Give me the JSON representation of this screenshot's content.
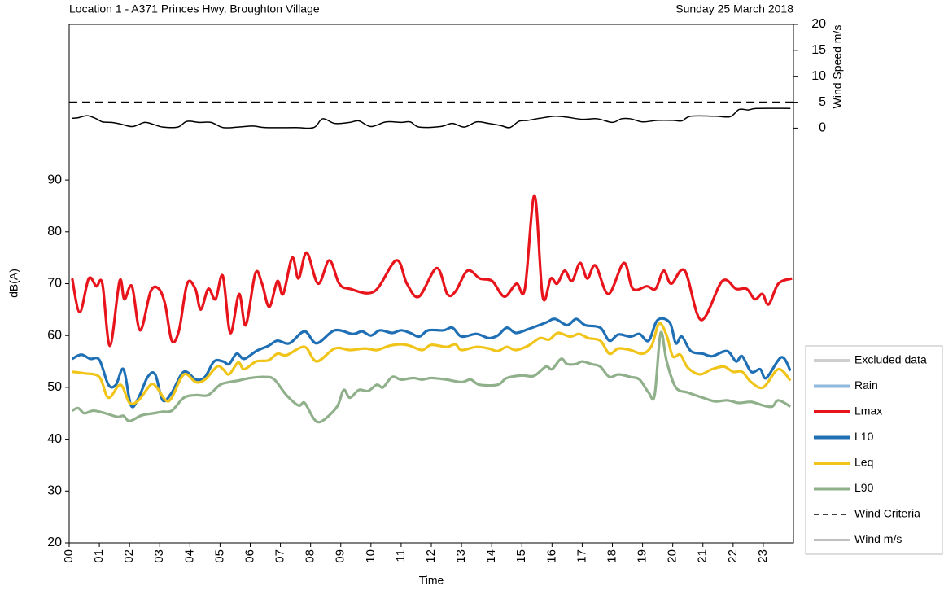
{
  "chart_data": {
    "type": "line",
    "title": "Location 1 - A371 Princes Hwy, Broughton Village",
    "subtitle": "Sunday 25 March 2018",
    "x_label": "Time",
    "y_label": "dB(A)",
    "y2_label": "Wind Speed m/s",
    "xlim": [
      0,
      24
    ],
    "xticks": [
      {
        "value": 0,
        "label": "00"
      },
      {
        "value": 1,
        "label": "01"
      },
      {
        "value": 2,
        "label": "02"
      },
      {
        "value": 3,
        "label": "03"
      },
      {
        "value": 4,
        "label": "04"
      },
      {
        "value": 5,
        "label": "05"
      },
      {
        "value": 6,
        "label": "06"
      },
      {
        "value": 7,
        "label": "07"
      },
      {
        "value": 8,
        "label": "08"
      },
      {
        "value": 9,
        "label": "09"
      },
      {
        "value": 10,
        "label": "10"
      },
      {
        "value": 11,
        "label": "11"
      },
      {
        "value": 12,
        "label": "12"
      },
      {
        "value": 13,
        "label": "13"
      },
      {
        "value": 14,
        "label": "14"
      },
      {
        "value": 15,
        "label": "15"
      },
      {
        "value": 16,
        "label": "16"
      },
      {
        "value": 17,
        "label": "17"
      },
      {
        "value": 18,
        "label": "18"
      },
      {
        "value": 19,
        "label": "19"
      },
      {
        "value": 20,
        "label": "20"
      },
      {
        "value": 21,
        "label": "21"
      },
      {
        "value": 22,
        "label": "22"
      },
      {
        "value": 23,
        "label": "23"
      }
    ],
    "ylim": [
      20,
      120
    ],
    "yticks": [
      20,
      30,
      40,
      50,
      60,
      70,
      80,
      90
    ],
    "y2lim": [
      -80,
      20
    ],
    "y2ticks": [
      0,
      5,
      10,
      15,
      20
    ],
    "legend": "right",
    "series": [
      {
        "name": "Excluded data",
        "color": "#cfcfcf",
        "x": [],
        "values": []
      },
      {
        "name": "Rain",
        "color": "#8fb8de",
        "x": [],
        "values": []
      },
      {
        "name": "Lmax",
        "color": "#e8141b",
        "x": [
          0.1,
          0.35,
          0.65,
          0.9,
          1.1,
          1.35,
          1.67,
          1.83,
          2.08,
          2.35,
          2.7,
          2.97,
          3.18,
          3.4,
          3.64,
          3.91,
          4.18,
          4.36,
          4.61,
          4.85,
          5.09,
          5.34,
          5.63,
          5.85,
          6.17,
          6.39,
          6.63,
          6.9,
          7.09,
          7.39,
          7.6,
          7.87,
          8.25,
          8.62,
          8.95,
          9.3,
          10.11,
          10.84,
          11.19,
          11.59,
          12.18,
          12.53,
          12.8,
          13.2,
          13.61,
          14.02,
          14.42,
          14.82,
          15.1,
          15.42,
          15.69,
          15.96,
          16.17,
          16.42,
          16.66,
          16.93,
          17.17,
          17.44,
          17.87,
          18.38,
          18.68,
          19.14,
          19.43,
          19.7,
          19.95,
          20.4,
          20.94,
          21.64,
          22.1,
          22.45,
          22.72,
          22.97,
          23.18,
          23.5,
          23.95
        ],
        "values": [
          71,
          64.5,
          71,
          69.5,
          70,
          58,
          70.5,
          67,
          69.5,
          61,
          68.5,
          69,
          66,
          59,
          61,
          70,
          69,
          65,
          69,
          67,
          71.5,
          60.5,
          68,
          62,
          72,
          70,
          65.5,
          70.5,
          68,
          75,
          71,
          76,
          70,
          74.5,
          70,
          69,
          68.5,
          74.5,
          70,
          67.5,
          73,
          68,
          68.5,
          72.5,
          71,
          70.5,
          67.5,
          70,
          69,
          87,
          67.5,
          71,
          70,
          72.5,
          70.5,
          74,
          71,
          73.5,
          68,
          74,
          69,
          69.5,
          69,
          72.5,
          70,
          72.5,
          63,
          70.5,
          69,
          69,
          67,
          68,
          66,
          70,
          71
        ]
      },
      {
        "name": "L10",
        "color": "#1f6fb5",
        "x": [
          0.1,
          0.4,
          0.7,
          1.0,
          1.3,
          1.55,
          1.8,
          2.05,
          2.3,
          2.6,
          2.85,
          3.1,
          3.4,
          3.8,
          4.2,
          4.5,
          4.8,
          5.1,
          5.3,
          5.55,
          5.8,
          6.2,
          6.6,
          6.9,
          7.3,
          7.8,
          8.2,
          8.8,
          9.4,
          9.7,
          10,
          10.3,
          10.7,
          11,
          11.3,
          11.6,
          11.9,
          12.4,
          12.7,
          13,
          13.5,
          13.9,
          14.2,
          14.5,
          14.8,
          15.2,
          15.8,
          16.1,
          16.5,
          16.8,
          17.1,
          17.6,
          17.9,
          18.2,
          18.6,
          18.9,
          19.2,
          19.5,
          19.9,
          20.1,
          20.3,
          20.6,
          21,
          21.3,
          21.8,
          22.1,
          22.3,
          22.6,
          22.9,
          23.1,
          23.6,
          23.9
        ],
        "values": [
          55.5,
          56.3,
          55.5,
          55.3,
          50.5,
          50.5,
          53.5,
          46.5,
          48,
          52,
          52.5,
          47.5,
          49,
          53,
          51.5,
          52,
          55,
          55,
          54.5,
          56.5,
          55.5,
          57,
          58,
          59,
          58.5,
          60.8,
          58.5,
          61,
          60.3,
          60.8,
          60,
          61,
          60.5,
          61,
          60.5,
          59.8,
          61,
          61,
          61.5,
          59.8,
          60.3,
          59.5,
          60,
          61.5,
          60.5,
          61.2,
          62.5,
          63.2,
          62,
          63.2,
          62,
          61.5,
          59,
          60.2,
          59.8,
          60.3,
          59,
          63,
          62.5,
          58.5,
          59.8,
          57,
          56.5,
          56,
          57,
          55,
          56,
          53,
          53.5,
          51.8,
          55.8,
          53.2
        ]
      },
      {
        "name": "Leq",
        "color": "#f0c419",
        "x": [
          0.1,
          0.5,
          1,
          1.3,
          1.7,
          2,
          2.3,
          2.7,
          2.9,
          3.2,
          3.4,
          3.8,
          4.2,
          4.5,
          4.9,
          5.1,
          5.3,
          5.6,
          5.8,
          6.2,
          6.6,
          6.9,
          7.2,
          7.8,
          8.2,
          8.8,
          9.3,
          9.8,
          10.2,
          10.6,
          11,
          11.3,
          11.7,
          12,
          12.5,
          12.8,
          13,
          13.5,
          13.9,
          14.2,
          14.5,
          14.8,
          15.2,
          15.6,
          15.9,
          16.2,
          16.6,
          16.9,
          17.2,
          17.6,
          17.9,
          18.2,
          18.6,
          19,
          19.3,
          19.55,
          19.8,
          20,
          20.25,
          20.5,
          20.9,
          21.3,
          21.7,
          22,
          22.3,
          22.6,
          23,
          23.5,
          23.9
        ],
        "values": [
          53,
          52.7,
          52,
          48,
          50.5,
          47,
          47.5,
          50.5,
          50,
          47.5,
          48,
          52.5,
          51,
          51.5,
          54,
          53.5,
          52.5,
          54.8,
          53.5,
          55,
          55.2,
          56.5,
          56.2,
          57.8,
          55,
          57.5,
          57.2,
          57.5,
          57.2,
          58,
          58.3,
          58,
          57.2,
          58.2,
          57.8,
          58.3,
          57.2,
          57.8,
          57.5,
          57,
          57.8,
          57.2,
          58,
          59.5,
          59.2,
          60.5,
          59.8,
          60.3,
          59.5,
          59,
          56.5,
          57.5,
          57.2,
          56.5,
          58,
          62.3,
          60,
          56,
          56.3,
          53.8,
          52.5,
          53.5,
          54,
          53,
          53,
          51,
          50,
          53.5,
          51.3
        ]
      },
      {
        "name": "L90",
        "color": "#8fb08a",
        "x": [
          0.1,
          0.3,
          0.5,
          0.8,
          1.2,
          1.6,
          1.8,
          2,
          2.4,
          2.8,
          3.1,
          3.4,
          3.8,
          4.2,
          4.6,
          5,
          5.3,
          5.6,
          6,
          6.5,
          6.8,
          7.2,
          7.6,
          7.8,
          8.1,
          8.3,
          8.6,
          8.9,
          9.1,
          9.3,
          9.6,
          9.9,
          10.2,
          10.4,
          10.7,
          11,
          11.4,
          11.7,
          12,
          12.5,
          13,
          13.3,
          13.6,
          14.2,
          14.5,
          15,
          15.4,
          15.8,
          16,
          16.3,
          16.5,
          16.8,
          17,
          17.3,
          17.6,
          17.9,
          18.2,
          18.6,
          18.9,
          19.2,
          19.4,
          19.6,
          19.8,
          20.1,
          20.5,
          21,
          21.4,
          21.8,
          22.2,
          22.6,
          23,
          23.3,
          23.5,
          23.9
        ],
        "values": [
          45.5,
          46,
          45,
          45.5,
          45,
          44.3,
          44.5,
          43.5,
          44.6,
          45,
          45.3,
          45.5,
          48,
          48.5,
          48.5,
          50.5,
          51,
          51.3,
          51.8,
          52,
          51.5,
          48.5,
          46.5,
          47,
          44,
          43.3,
          44.5,
          46.5,
          49.5,
          48,
          49.5,
          49.3,
          50.5,
          50,
          52,
          51.5,
          51.8,
          51.5,
          51.8,
          51.5,
          51,
          51.5,
          50.5,
          50.5,
          51.8,
          52.3,
          52.2,
          54,
          53.5,
          55.5,
          54.5,
          54.5,
          55,
          54.5,
          54,
          52,
          52.5,
          52,
          51.5,
          49,
          48.5,
          60.5,
          55,
          50,
          49,
          48,
          47.3,
          47.5,
          47,
          47.2,
          46.5,
          46.3,
          47.5,
          46.3
        ]
      },
      {
        "name": "Wind Criteria",
        "color": "#000000",
        "axis": "y2",
        "dash": true,
        "x": [
          0,
          24
        ],
        "values": [
          5,
          5
        ]
      },
      {
        "name": "Wind m/s",
        "color": "#000000",
        "axis": "y2",
        "x": [
          0.1,
          0.3,
          0.6,
          0.9,
          1.1,
          1.4,
          1.7,
          2.1,
          2.5,
          2.8,
          3.1,
          3.6,
          3.9,
          4.3,
          4.7,
          5.1,
          5.6,
          6.1,
          6.5,
          7.5,
          8.1,
          8.4,
          8.8,
          9.3,
          9.6,
          10,
          10.5,
          11,
          11.3,
          11.6,
          12.3,
          12.7,
          13.1,
          13.5,
          13.9,
          14.3,
          14.6,
          14.9,
          15.2,
          15.6,
          16.1,
          16.5,
          17,
          17.5,
          18,
          18.3,
          18.6,
          19,
          19.5,
          20,
          20.3,
          20.6,
          21.4,
          21.9,
          22.2,
          22.5,
          22.8,
          23.9
        ],
        "values": [
          1.9,
          2.0,
          2.4,
          1.8,
          1.2,
          1.1,
          0.8,
          0.3,
          1.1,
          0.7,
          0.2,
          0.2,
          1.3,
          1.1,
          1.1,
          0.1,
          0.2,
          0.4,
          0.1,
          0.1,
          0.1,
          1.8,
          0.9,
          1.1,
          1.4,
          0.3,
          1.2,
          1.1,
          1.2,
          0.2,
          0.3,
          0.9,
          0.2,
          1.2,
          0.9,
          0.5,
          0.1,
          1.3,
          1.5,
          1.9,
          2.3,
          2.1,
          1.7,
          1.8,
          1.1,
          1.8,
          1.8,
          1.2,
          1.5,
          1.5,
          1.4,
          2.3,
          2.3,
          2.2,
          3.6,
          3.5,
          3.8,
          3.8
        ]
      }
    ]
  }
}
